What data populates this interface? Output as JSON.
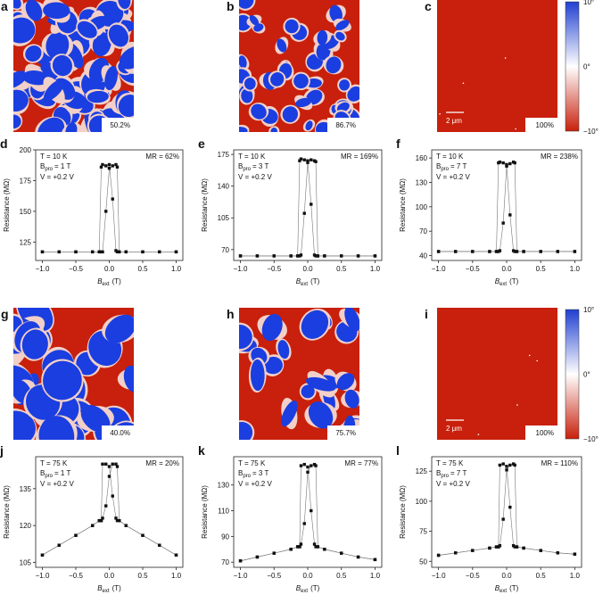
{
  "image_panels": [
    {
      "label": "a",
      "fraction": "50.2%"
    },
    {
      "label": "b",
      "fraction": "86.7%"
    },
    {
      "label": "c",
      "fraction": "100%",
      "scale_bar": "2 μm"
    },
    {
      "label": "g",
      "fraction": "40.0%"
    },
    {
      "label": "h",
      "fraction": "75.7%"
    },
    {
      "label": "i",
      "fraction": "100%",
      "scale_bar": "2 μm"
    }
  ],
  "colorbar": {
    "ticks": [
      "10°",
      "0°",
      "−10°"
    ]
  },
  "chart_data": [
    {
      "type": "line",
      "label": "d",
      "temperature": "T = 10 K",
      "field": [
        "B",
        "pro",
        "= 1 T"
      ],
      "voltage": "V = +0.2 V",
      "mr": "MR = 62%",
      "xlabel": [
        "B",
        "ext",
        "(T)"
      ],
      "ylabel": "Resistance (MΩ)",
      "x": [
        -1,
        -0.75,
        -0.5,
        -0.25,
        -0.15,
        -0.12,
        -0.1,
        -0.05,
        0,
        0.05,
        0.1,
        0.12,
        0.15,
        0.25,
        0.5,
        0.75,
        1
      ],
      "series": [
        {
          "color": "#111",
          "values": [
            117,
            117,
            117,
            117,
            117,
            186,
            188,
            187,
            188,
            160,
            118,
            117,
            117,
            117,
            117,
            117,
            117
          ]
        },
        {
          "color": "#111",
          "values": [
            117,
            117,
            117,
            117,
            117,
            117,
            117,
            150,
            185,
            187,
            188,
            186,
            117,
            117,
            117,
            117,
            117
          ]
        }
      ],
      "xlim": [
        -1.1,
        1.1
      ],
      "ylim": [
        110,
        200
      ],
      "xticks": [
        {
          "value": -1,
          "label": "−1.0"
        },
        {
          "value": -0.5,
          "label": "−0.5"
        },
        {
          "value": 0,
          "label": "0.0"
        },
        {
          "value": 0.5,
          "label": "0.5"
        },
        {
          "value": 1,
          "label": "1.0"
        }
      ],
      "yticks": [
        125,
        150,
        175,
        200
      ]
    },
    {
      "type": "line",
      "label": "e",
      "temperature": "T = 10 K",
      "field": [
        "B",
        "pro",
        "= 3 T"
      ],
      "voltage": "V = +0.2 V",
      "mr": "MR = 169%",
      "xlabel": [
        "B",
        "ext",
        "(T)"
      ],
      "ylabel": "Resistance (MΩ)",
      "x": [
        -1,
        -0.75,
        -0.5,
        -0.25,
        -0.15,
        -0.12,
        -0.1,
        -0.05,
        0,
        0.05,
        0.1,
        0.12,
        0.15,
        0.25,
        0.5,
        0.75,
        1
      ],
      "series": [
        {
          "color": "#111",
          "values": [
            63,
            63,
            63,
            63,
            63,
            168,
            170,
            169,
            168,
            120,
            64,
            63,
            63,
            63,
            63,
            63,
            63
          ]
        },
        {
          "color": "#111",
          "values": [
            63,
            63,
            63,
            63,
            63,
            63,
            64,
            110,
            166,
            169,
            168,
            167,
            63,
            63,
            63,
            63,
            63
          ]
        }
      ],
      "xlim": [
        -1.1,
        1.1
      ],
      "ylim": [
        58,
        180
      ],
      "xticks": [
        {
          "value": -1,
          "label": "−1.0"
        },
        {
          "value": -0.5,
          "label": "−0.5"
        },
        {
          "value": 0,
          "label": "0.0"
        },
        {
          "value": 0.5,
          "label": "0.5"
        },
        {
          "value": 1,
          "label": "1.0"
        }
      ],
      "yticks": [
        70,
        105,
        140,
        175
      ]
    },
    {
      "type": "line",
      "label": "f",
      "temperature": "T = 10 K",
      "field": [
        "B",
        "pro",
        "= 7 T"
      ],
      "voltage": "V = +0.2 V",
      "mr": "MR = 238%",
      "xlabel": [
        "B",
        "ext",
        "(T)"
      ],
      "ylabel": "Resistance (MΩ)",
      "x": [
        -1,
        -0.75,
        -0.5,
        -0.25,
        -0.15,
        -0.12,
        -0.1,
        -0.05,
        0,
        0.05,
        0.1,
        0.12,
        0.15,
        0.25,
        0.5,
        0.75,
        1
      ],
      "series": [
        {
          "color": "#111",
          "values": [
            45,
            45,
            45,
            45,
            45,
            154,
            155,
            154,
            152,
            90,
            46,
            45,
            45,
            45,
            45,
            45,
            45
          ]
        },
        {
          "color": "#111",
          "values": [
            45,
            45,
            45,
            45,
            45,
            45,
            46,
            80,
            150,
            153,
            155,
            154,
            45,
            45,
            45,
            45,
            45
          ]
        }
      ],
      "xlim": [
        -1.1,
        1.1
      ],
      "ylim": [
        34,
        170
      ],
      "xticks": [
        {
          "value": -1,
          "label": "−1.0"
        },
        {
          "value": -0.5,
          "label": "−0.5"
        },
        {
          "value": 0,
          "label": "0.0"
        },
        {
          "value": 0.5,
          "label": "0.5"
        },
        {
          "value": 1,
          "label": "1.0"
        }
      ],
      "yticks": [
        40,
        70,
        100,
        130,
        160
      ]
    },
    {
      "type": "line",
      "label": "j",
      "temperature": "T = 75 K",
      "field": [
        "B",
        "pro",
        "= 1 T"
      ],
      "voltage": "V = +0.2 V",
      "mr": "MR = 20%",
      "xlabel": [
        "B",
        "ext",
        "(T)"
      ],
      "ylabel": "Resistance (MΩ)",
      "x": [
        -1,
        -0.75,
        -0.5,
        -0.25,
        -0.15,
        -0.12,
        -0.1,
        -0.05,
        0,
        0.05,
        0.1,
        0.12,
        0.15,
        0.25,
        0.5,
        0.75,
        1
      ],
      "series": [
        {
          "color": "#111",
          "values": [
            108,
            112,
            116,
            120,
            122,
            122,
            145,
            145,
            144,
            132,
            123,
            122,
            122,
            120,
            116,
            112,
            108
          ]
        },
        {
          "color": "#111",
          "values": [
            108,
            112,
            116,
            120,
            122,
            122,
            123,
            128,
            140,
            145,
            145,
            144,
            122,
            120,
            116,
            112,
            108
          ]
        }
      ],
      "xlim": [
        -1.1,
        1.1
      ],
      "ylim": [
        103,
        148
      ],
      "xticks": [
        {
          "value": -1,
          "label": "−1.0"
        },
        {
          "value": -0.5,
          "label": "−0.5"
        },
        {
          "value": 0,
          "label": "0.0"
        },
        {
          "value": 0.5,
          "label": "0.5"
        },
        {
          "value": 1,
          "label": "1.0"
        }
      ],
      "yticks": [
        105,
        120,
        135
      ]
    },
    {
      "type": "line",
      "label": "k",
      "temperature": "T = 75 K",
      "field": [
        "B",
        "pro",
        "= 3 T"
      ],
      "voltage": "V = +0.2 V",
      "mr": "MR = 77%",
      "xlabel": [
        "B",
        "ext",
        "(T)"
      ],
      "ylabel": "Resistance (MΩ)",
      "x": [
        -1,
        -0.75,
        -0.5,
        -0.25,
        -0.15,
        -0.12,
        -0.1,
        -0.05,
        0,
        0.05,
        0.1,
        0.12,
        0.15,
        0.25,
        0.5,
        0.75,
        1
      ],
      "series": [
        {
          "color": "#111",
          "values": [
            71,
            74,
            77,
            80,
            82,
            82,
            145,
            146,
            144,
            110,
            84,
            82,
            82,
            80,
            77,
            74,
            72
          ]
        },
        {
          "color": "#111",
          "values": [
            71,
            74,
            77,
            80,
            82,
            82,
            84,
            100,
            140,
            145,
            146,
            145,
            82,
            80,
            77,
            74,
            72
          ]
        }
      ],
      "xlim": [
        -1.1,
        1.1
      ],
      "ylim": [
        66,
        152
      ],
      "xticks": [
        {
          "value": -1,
          "label": "−1.0"
        },
        {
          "value": -0.5,
          "label": "−0.5"
        },
        {
          "value": 0,
          "label": "0.0"
        },
        {
          "value": 0.5,
          "label": "0.5"
        },
        {
          "value": 1,
          "label": "1.0"
        }
      ],
      "yticks": [
        70,
        90,
        110,
        130
      ]
    },
    {
      "type": "line",
      "label": "l",
      "temperature": "T = 75 K",
      "field": [
        "B",
        "pro",
        "= 7 T"
      ],
      "voltage": "V = +0.2 V",
      "mr": "MR = 110%",
      "xlabel": [
        "B",
        "ext",
        "(T)"
      ],
      "ylabel": "Resistance (MΩ)",
      "x": [
        -1,
        -0.75,
        -0.5,
        -0.25,
        -0.15,
        -0.12,
        -0.1,
        -0.05,
        0,
        0.05,
        0.1,
        0.12,
        0.15,
        0.25,
        0.5,
        0.75,
        1
      ],
      "series": [
        {
          "color": "#111",
          "values": [
            55,
            57,
            59,
            61,
            62,
            62,
            130,
            131,
            129,
            95,
            63,
            62,
            62,
            61,
            59,
            57,
            56
          ]
        },
        {
          "color": "#111",
          "values": [
            55,
            57,
            59,
            61,
            62,
            62,
            63,
            85,
            126,
            130,
            131,
            130,
            62,
            61,
            59,
            57,
            56
          ]
        }
      ],
      "xlim": [
        -1.1,
        1.1
      ],
      "ylim": [
        45,
        137
      ],
      "xticks": [
        {
          "value": -1,
          "label": "−1.0"
        },
        {
          "value": -0.5,
          "label": "−0.5"
        },
        {
          "value": 0,
          "label": "0.0"
        },
        {
          "value": 0.5,
          "label": "0.5"
        },
        {
          "value": 1,
          "label": "1.0"
        }
      ],
      "yticks": [
        50,
        75,
        100,
        125
      ]
    }
  ]
}
